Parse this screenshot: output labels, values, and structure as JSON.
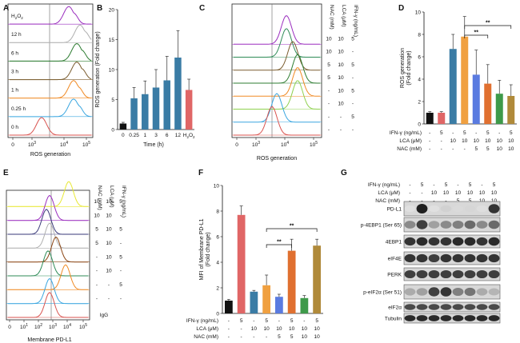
{
  "panels": {
    "A": {
      "letter": "A",
      "rows": [
        "H2O2",
        "12 h",
        "6 h",
        "3 h",
        "1 h",
        "0.25 h",
        "0 h"
      ],
      "xlabel": "ROS generation",
      "xticks": [
        "0",
        "10^3",
        "10^4",
        "10^5"
      ],
      "colors": [
        "#9b2fbf",
        "#b0b0b0",
        "#2e7d32",
        "#7a5c2e",
        "#f08a24",
        "#3aa6e0",
        "#d9534f"
      ]
    },
    "B": {
      "letter": "B"
    },
    "C": {
      "letter": "C",
      "headers": [
        "NAC (mM)",
        "LCA (μM)",
        "IFN-γ (ng/mL)"
      ],
      "rows": [
        [
          "10",
          "10",
          "5"
        ],
        [
          "10",
          "10",
          "-"
        ],
        [
          "5",
          "10",
          "5"
        ],
        [
          "5",
          "10",
          "-"
        ],
        [
          "-",
          "10",
          "5"
        ],
        [
          "-",
          "10",
          "-"
        ],
        [
          "-",
          "-",
          "5"
        ],
        [
          "-",
          "-",
          "-"
        ]
      ],
      "xlabel": "ROS generation",
      "xticks": [
        "0",
        "10^3",
        "10^4",
        "10^5"
      ],
      "colors": [
        "#9b2fbf",
        "#2e8b57",
        "#7a5c2e",
        "#2e7d32",
        "#f08a24",
        "#8fd14f",
        "#3aa6e0",
        "#d9534f"
      ]
    },
    "D": {
      "letter": "D",
      "sig": [
        "**",
        "**"
      ],
      "cond_labels": [
        "IFN-γ (ng/mL)",
        "LCA (μM)",
        "NAC (mM)"
      ],
      "cond": [
        [
          "-",
          "5",
          "-",
          "5",
          "-",
          "5",
          "-",
          "5"
        ],
        [
          "-",
          "-",
          "10",
          "10",
          "10",
          "10",
          "10",
          "10"
        ],
        [
          "-",
          "-",
          "-",
          "-",
          "5",
          "5",
          "10",
          "10"
        ]
      ]
    },
    "E": {
      "letter": "E",
      "headers": [
        "NAC (mM)",
        "LCA (μM)",
        "IFN-γ (ng/mL)"
      ],
      "rows": [
        [
          "10",
          "10",
          "5"
        ],
        [
          "10",
          "10",
          "-"
        ],
        [
          "5",
          "10",
          "5"
        ],
        [
          "5",
          "10",
          "-"
        ],
        [
          "-",
          "10",
          "5"
        ],
        [
          "-",
          "10",
          "-"
        ],
        [
          "-",
          "-",
          "5"
        ],
        [
          "-",
          "-",
          "-"
        ]
      ],
      "iso": "IgG",
      "xlabel": "Membrane PD-L1",
      "xticks": [
        "0",
        "10^1",
        "10^2",
        "10^3",
        "10^4",
        "10^5"
      ],
      "colors": [
        "#e8e832",
        "#9b2fbf",
        "#3a3a7a",
        "#b0b0b0",
        "#8b4513",
        "#2e8b57",
        "#f08a24",
        "#3aa6e0",
        "#d9534f"
      ]
    },
    "F": {
      "letter": "F",
      "sig": [
        "**",
        "**"
      ],
      "cond_labels": [
        "IFN-γ (ng/mL)",
        "LCA (μM)",
        "NAC (mM)"
      ],
      "cond": [
        [
          "-",
          "5",
          "-",
          "5",
          "-",
          "5",
          "-",
          "5"
        ],
        [
          "-",
          "-",
          "10",
          "10",
          "10",
          "10",
          "10",
          "10"
        ],
        [
          "-",
          "-",
          "-",
          "-",
          "5",
          "5",
          "10",
          "10"
        ]
      ]
    },
    "G": {
      "letter": "G",
      "cond_labels": [
        "IFN-γ (ng/mL)",
        "LCA (μM)",
        "NAC (mM)"
      ],
      "cond": [
        [
          "-",
          "5",
          "-",
          "5",
          "-",
          "5",
          "-",
          "5"
        ],
        [
          "-",
          "-",
          "10",
          "10",
          "10",
          "10",
          "10",
          "10"
        ],
        [
          "-",
          "-",
          "-",
          "-",
          "5",
          "5",
          "10",
          "10"
        ]
      ],
      "blots": [
        "PD-L1",
        "p-4EBP1 (Ser 65)",
        "4EBP1",
        "eIF4E",
        "PERK",
        "p-eIF2α (Ser 51)",
        "eIF2α",
        "Tubulin"
      ]
    }
  },
  "chart_data": [
    {
      "type": "bar",
      "panel": "B",
      "categories": [
        "0",
        "0.25",
        "1",
        "3",
        "6",
        "12",
        "H2O2"
      ],
      "values": [
        1.0,
        5.2,
        5.9,
        7.0,
        8.2,
        12.0,
        6.6
      ],
      "errors": [
        0.2,
        1.8,
        2.2,
        3.0,
        4.0,
        4.5,
        1.8
      ],
      "colors": [
        "#111111",
        "#3a7ca5",
        "#3a7ca5",
        "#3a7ca5",
        "#3a7ca5",
        "#3a7ca5",
        "#e06666"
      ],
      "xlabel": "Time (h)",
      "ylabel": "ROS generation (Fold change)",
      "ylim": [
        0,
        20
      ],
      "yticks": [
        0,
        5,
        10,
        15,
        20
      ]
    },
    {
      "type": "bar",
      "panel": "D",
      "values": [
        1.0,
        1.0,
        6.7,
        7.8,
        4.4,
        3.6,
        2.7,
        2.5
      ],
      "errors": [
        0.1,
        0.1,
        1.3,
        1.8,
        2.2,
        1.7,
        1.2,
        1.0
      ],
      "colors": [
        "#111111",
        "#e06666",
        "#3a7ca5",
        "#f0a040",
        "#5a7be0",
        "#e07030",
        "#3e9a4a",
        "#b08a3a"
      ],
      "ylabel": "ROS generation (Fold change)",
      "ylim": [
        0,
        10
      ],
      "yticks": [
        0,
        2,
        4,
        6,
        8,
        10
      ]
    },
    {
      "type": "bar",
      "panel": "F",
      "values": [
        1.0,
        7.7,
        1.7,
        2.2,
        1.3,
        4.9,
        1.2,
        5.3
      ],
      "errors": [
        0.1,
        0.7,
        0.1,
        0.8,
        0.2,
        0.9,
        0.2,
        0.5
      ],
      "colors": [
        "#111111",
        "#e06666",
        "#3a7ca5",
        "#f0a040",
        "#5a7be0",
        "#e07030",
        "#3e9a4a",
        "#b08a3a"
      ],
      "ylabel": "MFI of Membrane PD-L1 (Fold change)",
      "ylim": [
        0,
        10
      ],
      "yticks": [
        0,
        2,
        4,
        6,
        8,
        10
      ]
    }
  ]
}
